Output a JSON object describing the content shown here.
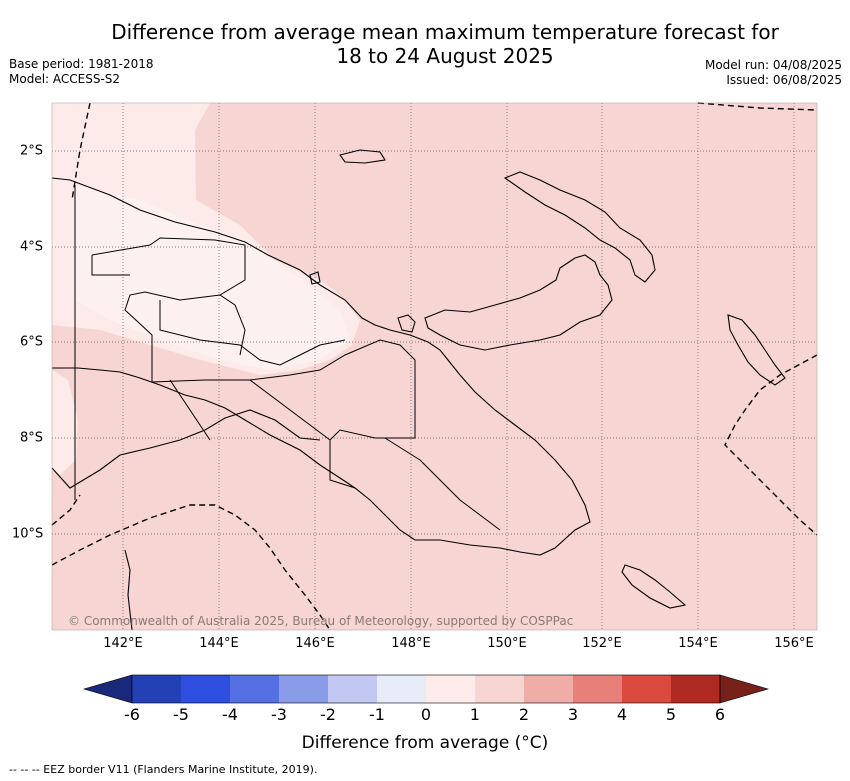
{
  "title_line1": "Difference from average mean maximum temperature forecast for",
  "title_line2": "18 to 24 August 2025",
  "base_period": "Base period: 1981-2018",
  "model": "Model: ACCESS-S2",
  "model_run": "Model run: 04/08/2025",
  "issued": "Issued: 06/08/2025",
  "copyright": "© Commonwealth of Australia 2025, Bureau of Meteorology, supported by COSPPac",
  "lon_labels": [
    "142°E",
    "144°E",
    "146°E",
    "148°E",
    "150°E",
    "152°E",
    "154°E",
    "156°E"
  ],
  "lat_labels": [
    "2°S",
    "4°S",
    "6°S",
    "8°S",
    "10°S"
  ],
  "colorbar": {
    "ticks": [
      "-6",
      "-5",
      "-4",
      "-3",
      "-2",
      "-1",
      "0",
      "1",
      "2",
      "3",
      "4",
      "5",
      "6"
    ],
    "colors": [
      "#19287a",
      "#2340b4",
      "#2e4ee0",
      "#5470e2",
      "#8a9ce8",
      "#c2c8f2",
      "#e8ecf8",
      "#fcebe8",
      "#f6d5d2",
      "#f0aca6",
      "#e68078",
      "#da4a3e",
      "#ae2a22",
      "#78201a"
    ],
    "title": "Difference from average (°C)"
  },
  "footnote": "--  --  -- EEZ border V11 (Flanders Marine Institute, 2019).",
  "fill_colors": {
    "main": "#f6d5d2",
    "light": "#fcebe8",
    "lighter": "#fdf1ef"
  }
}
